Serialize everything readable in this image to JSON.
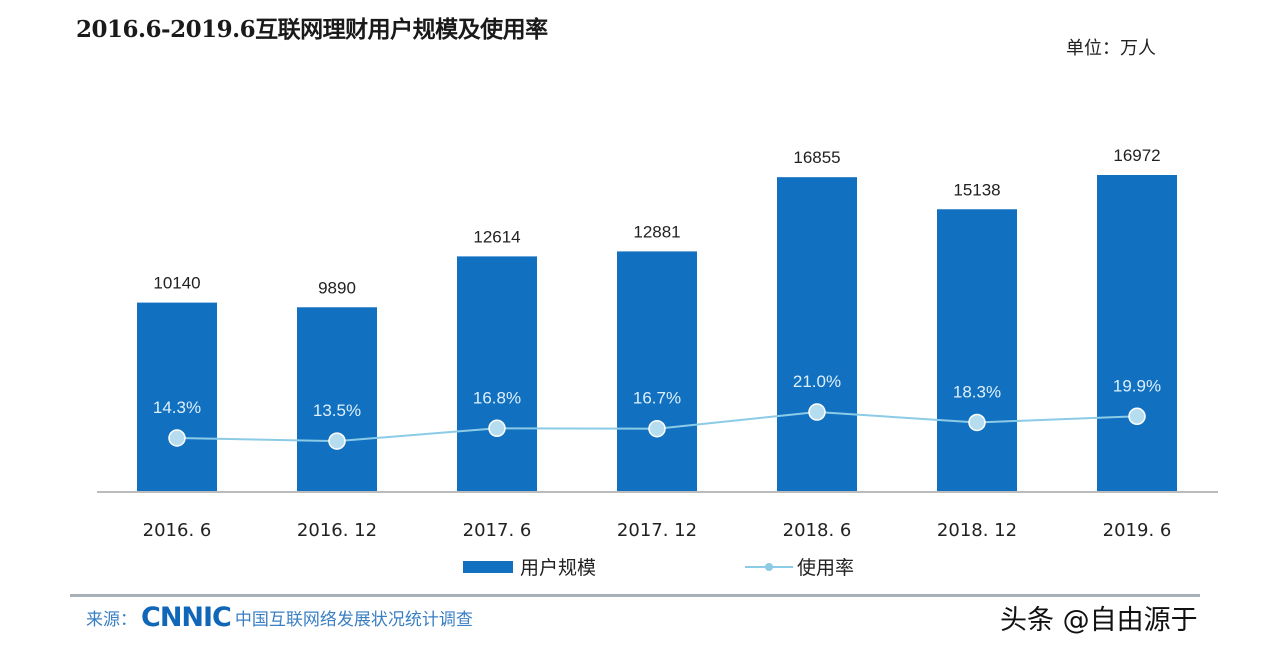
{
  "chart_data": {
    "type": "bar",
    "title": "2016.6-2019.6互联网理财用户规模及使用率",
    "unit_label": "单位：万人",
    "categories": [
      "2016. 6",
      "2016. 12",
      "2017. 6",
      "2017. 12",
      "2018. 6",
      "2018. 12",
      "2019. 6"
    ],
    "series": [
      {
        "name": "用户规模",
        "type": "bar",
        "values": [
          10140,
          9890,
          12614,
          12881,
          16855,
          15138,
          16972
        ],
        "labels": [
          "10140",
          "9890",
          "12614",
          "12881",
          "16855",
          "15138",
          "16972"
        ],
        "color": "#1170c0"
      },
      {
        "name": "使用率",
        "type": "line",
        "values": [
          14.3,
          13.5,
          16.8,
          16.7,
          21.0,
          18.3,
          19.9
        ],
        "labels": [
          "14.3%",
          "13.5%",
          "16.8%",
          "16.7%",
          "21.0%",
          "18.3%",
          "19.9%"
        ],
        "color": "#8ccbe6"
      }
    ],
    "legend_position": "bottom",
    "grid": false
  },
  "footer": {
    "source_prefix": "来源：",
    "source_logo": "CNNIC",
    "source_text": "中国互联网络发展状况统计调查",
    "watermark": "头条 @自由源于"
  }
}
